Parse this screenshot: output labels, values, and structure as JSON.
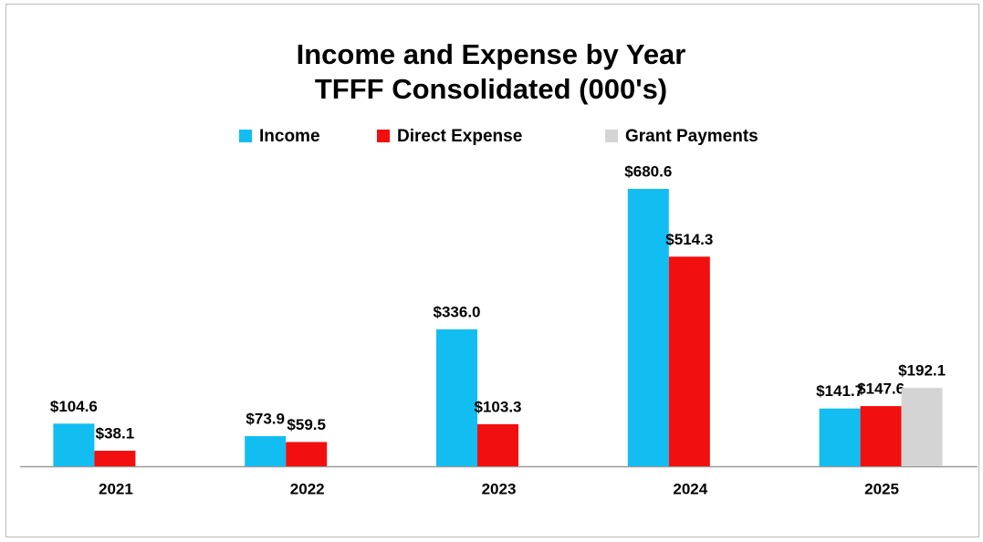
{
  "chart_data": {
    "type": "bar",
    "title": "Income and Expense by Year",
    "subtitle": "TFFF Consolidated (000's)",
    "categories": [
      "2021",
      "2022",
      "2023",
      "2024",
      "2025"
    ],
    "series": [
      {
        "name": "Income",
        "color": "#12bdf2",
        "values": [
          104.6,
          73.9,
          336.0,
          680.6,
          141.7
        ],
        "value_labels": [
          "$104.6",
          "$73.9",
          "$336.0",
          "$680.6",
          "$141.7"
        ]
      },
      {
        "name": "Direct Expense",
        "color": "#f20f0f",
        "values": [
          38.1,
          59.5,
          103.3,
          514.3,
          147.6
        ],
        "value_labels": [
          "$38.1",
          "$59.5",
          "$103.3",
          "$514.3",
          "$147.6"
        ]
      },
      {
        "name": "Grant Payments",
        "color": "#d4d4d4",
        "values": [
          null,
          null,
          null,
          null,
          192.1
        ],
        "value_labels": [
          null,
          null,
          null,
          null,
          "$192.1"
        ]
      }
    ],
    "legend": "top"
  }
}
